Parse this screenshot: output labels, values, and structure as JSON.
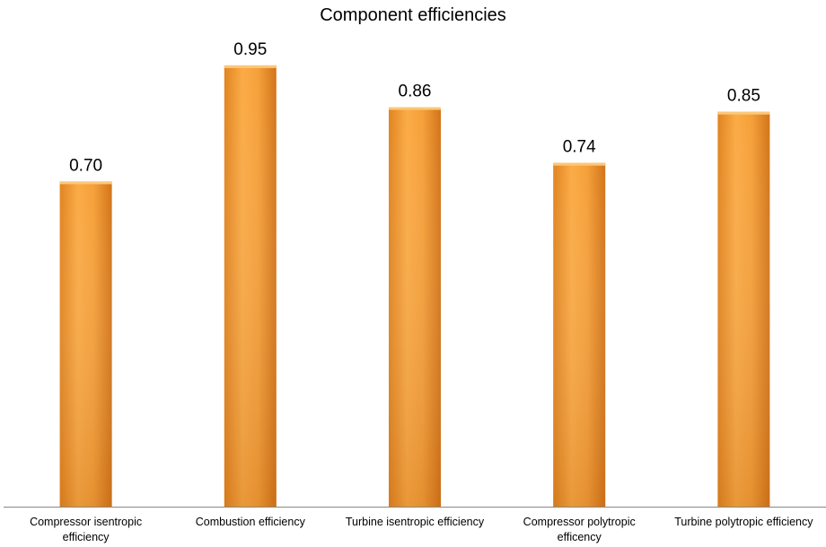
{
  "chart_data": {
    "type": "bar",
    "title": "Component efficiencies",
    "categories": [
      [
        "Compressor isentropic",
        "efficiency"
      ],
      [
        "Combustion efficiency"
      ],
      [
        "Turbine isentropic efficiency"
      ],
      [
        "Compressor polytropic",
        "efficency"
      ],
      [
        "Turbine polytropic efficiency"
      ]
    ],
    "values": [
      0.7,
      0.95,
      0.86,
      0.74,
      0.85
    ],
    "value_labels": [
      "0.70",
      "0.95",
      "0.86",
      "0.74",
      "0.85"
    ],
    "ylim": [
      0,
      1.0
    ],
    "grid": false,
    "legend": "none",
    "colors": {
      "bar_light": "#fbab46",
      "bar_mid": "#f49a2c",
      "bar_dark": "#d9781c",
      "bar_top": "#fcc779",
      "axis": "#888888"
    }
  }
}
